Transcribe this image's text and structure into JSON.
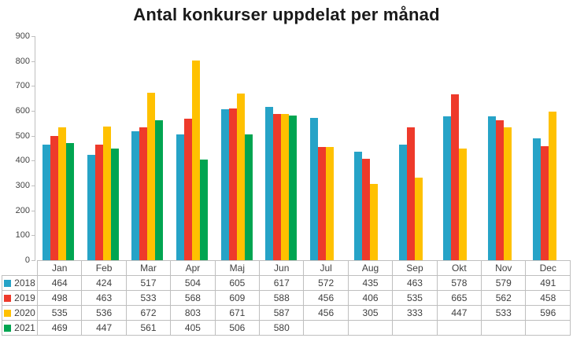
{
  "title": "Antal konkurser uppdelat per månad",
  "chart_data": {
    "type": "bar",
    "title": "Antal konkurser uppdelat per månad",
    "xlabel": "",
    "ylabel": "",
    "ylim": [
      0,
      900
    ],
    "ytick_step": 100,
    "grid": false,
    "legend_position": "table-left",
    "categories": [
      "Jan",
      "Feb",
      "Mar",
      "Apr",
      "Maj",
      "Jun",
      "Jul",
      "Aug",
      "Sep",
      "Okt",
      "Nov",
      "Dec"
    ],
    "series": [
      {
        "name": "2018",
        "color": "#26A3C7",
        "values": [
          464,
          424,
          517,
          504,
          605,
          617,
          572,
          435,
          463,
          578,
          579,
          491
        ]
      },
      {
        "name": "2019",
        "color": "#EE3A2B",
        "values": [
          498,
          463,
          533,
          568,
          609,
          588,
          456,
          406,
          535,
          665,
          562,
          458
        ]
      },
      {
        "name": "2020",
        "color": "#FFC100",
        "values": [
          535,
          536,
          672,
          803,
          671,
          587,
          456,
          305,
          333,
          447,
          533,
          596
        ]
      },
      {
        "name": "2021",
        "color": "#00A551",
        "values": [
          469,
          447,
          561,
          405,
          506,
          580,
          null,
          null,
          null,
          null,
          null,
          null
        ]
      }
    ]
  },
  "colors": {
    "axis_line": "#bfbfbf",
    "table_border": "#bfbfbf",
    "title_text": "#1a1a1a",
    "label_text": "#404040"
  }
}
